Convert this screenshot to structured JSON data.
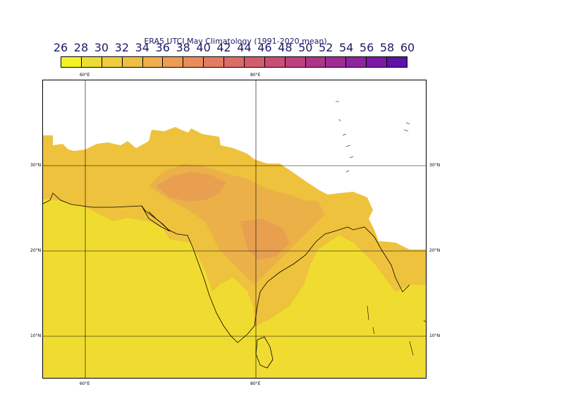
{
  "map": {
    "title": "ERA5 UTCI May Climatology (1991-2020 mean)",
    "colorbar": {
      "labels": [
        "26",
        "28",
        "30",
        "32",
        "34",
        "36",
        "38",
        "40",
        "42",
        "44",
        "46",
        "48",
        "50",
        "52",
        "54",
        "56",
        "58",
        "60"
      ],
      "colors": [
        "#f2f224",
        "#ecdc33",
        "#edcc3d",
        "#eebe45",
        "#eeae4d",
        "#ec9c55",
        "#e88c5b",
        "#e27b61",
        "#dc6b66",
        "#d35c6c",
        "#c84e75",
        "#bc417f",
        "#ae3689",
        "#9e2c93",
        "#8e249b",
        "#7a1ca3",
        "#5c14a6"
      ]
    },
    "axes": {
      "lon_labels": [
        "60°E",
        "80°E"
      ],
      "lat_labels": [
        "30°N",
        "20°N",
        "10°N"
      ]
    },
    "field_colors": {
      "low": "#f0dc30",
      "mid": "#eec23c",
      "high": "#ecb048",
      "peak": "#e8a050",
      "coast": "#000000",
      "grid": "#000000"
    }
  }
}
